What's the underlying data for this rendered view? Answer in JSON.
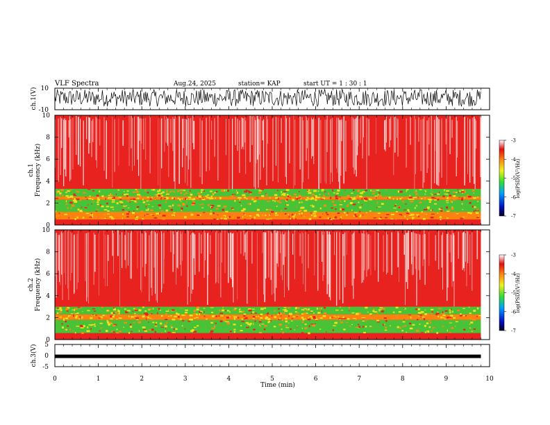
{
  "header": {
    "title": "VLF Spectra",
    "date": "Aug.24, 2025",
    "station": "station= KAP",
    "start": "start  UT =   1 : 30 : 1"
  },
  "colors": {
    "spectrogram_base": "#e8231f",
    "spectrogram_streak": "#ffffff",
    "band_green": "#39d43a",
    "band_yellow": "#f2e21a",
    "band_orange": "#ff8c10",
    "trace": "#000000"
  },
  "chart_data": [
    {
      "type": "line",
      "name": "ch1-waveform",
      "ylabel": "ch.1(V)",
      "ylim": [
        -10,
        10
      ],
      "yticks": [
        "10",
        "-10"
      ],
      "trace_amplitude_range": [
        -7,
        9
      ],
      "x_range_min": [
        0,
        9.8
      ]
    },
    {
      "type": "heatmap",
      "name": "ch1-spectrogram",
      "ylabel": "ch.1",
      "ylabel2": "Frequency (kHz)",
      "ylim": [
        0,
        10
      ],
      "yticks": [
        "0",
        "2",
        "4",
        "6",
        "8",
        "10"
      ],
      "bands_khz": [
        {
          "from": 0.5,
          "to": 1.2,
          "level": "orange"
        },
        {
          "from": 1.2,
          "to": 2.3,
          "level": "green-yellow"
        },
        {
          "from": 2.3,
          "to": 2.6,
          "level": "orange"
        },
        {
          "from": 2.6,
          "to": 3.3,
          "level": "green-yellow"
        }
      ],
      "colorbar": {
        "label": "log(PSD)(V²/Hz)",
        "ticks": [
          "-3",
          "-4",
          "-5",
          "-6",
          "-7"
        ],
        "range": [
          -7,
          -3
        ]
      }
    },
    {
      "type": "heatmap",
      "name": "ch2-spectrogram",
      "ylabel": "ch.2",
      "ylabel2": "Frequency (kHz)",
      "ylim": [
        0,
        10
      ],
      "yticks": [
        "0",
        "2",
        "4",
        "6",
        "8",
        "10"
      ],
      "bands_khz": [
        {
          "from": 0.6,
          "to": 1.8,
          "level": "green-yellow"
        },
        {
          "from": 1.8,
          "to": 2.3,
          "level": "orange"
        },
        {
          "from": 2.3,
          "to": 3.0,
          "level": "green-yellow"
        }
      ],
      "colorbar": {
        "label": "log(PSD)(V²/Hz)",
        "ticks": [
          "-3",
          "-4",
          "-5",
          "-6",
          "-7"
        ],
        "range": [
          -7,
          -3
        ]
      }
    },
    {
      "type": "line",
      "name": "ch3-waveform",
      "ylabel": "ch.3(V)",
      "ylim": [
        -5,
        5
      ],
      "yticks": [
        "5",
        "0",
        "-5"
      ],
      "trace_level": -0.5,
      "x_range_min": [
        0,
        9.8
      ]
    }
  ],
  "xaxis": {
    "label": "Time (min)",
    "ticks": [
      "0",
      "1",
      "2",
      "3",
      "4",
      "5",
      "6",
      "7",
      "8",
      "9",
      "10"
    ],
    "range": [
      0,
      10
    ]
  }
}
